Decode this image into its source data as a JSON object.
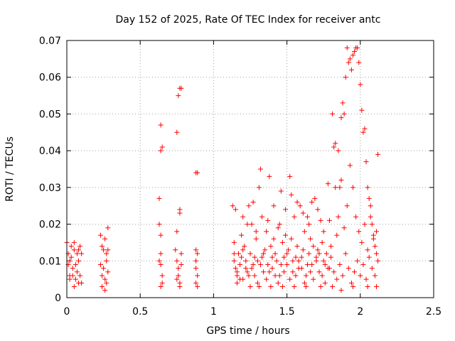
{
  "chart_data": {
    "type": "scatter",
    "title": "Day 152 of 2025, Rate Of TEC Index for receiver antc",
    "xlabel": "GPS time / hours",
    "ylabel": "ROTI / TECUs",
    "xlim": [
      0,
      2.5
    ],
    "ylim": [
      0,
      0.07
    ],
    "xticks": [
      "0",
      "0.5",
      "1",
      "1.5",
      "2",
      "2.5"
    ],
    "yticks": [
      "0",
      "0.01",
      "0.02",
      "0.03",
      "0.04",
      "0.05",
      "0.06",
      "0.07"
    ],
    "grid": true,
    "marker": "plus",
    "color": "#ff0000",
    "series": [
      {
        "points": [
          [
            0.0,
            0.015
          ],
          [
            0.01,
            0.012
          ],
          [
            0.01,
            0.009
          ],
          [
            0.02,
            0.006
          ],
          [
            0.02,
            0.005
          ],
          [
            0.03,
            0.014
          ],
          [
            0.03,
            0.011
          ],
          [
            0.04,
            0.008
          ],
          [
            0.04,
            0.006
          ],
          [
            0.05,
            0.015
          ],
          [
            0.05,
            0.013
          ],
          [
            0.06,
            0.009
          ],
          [
            0.06,
            0.005
          ],
          [
            0.07,
            0.012
          ],
          [
            0.07,
            0.007
          ],
          [
            0.08,
            0.004
          ],
          [
            0.08,
            0.01
          ],
          [
            0.09,
            0.014
          ],
          [
            0.09,
            0.006
          ],
          [
            0.1,
            0.012
          ],
          [
            0.1,
            0.004
          ],
          [
            0.02,
            0.01
          ],
          [
            0.05,
            0.003
          ],
          [
            0.08,
            0.013
          ],
          [
            0.23,
            0.017
          ],
          [
            0.23,
            0.009
          ],
          [
            0.24,
            0.006
          ],
          [
            0.24,
            0.003
          ],
          [
            0.25,
            0.013
          ],
          [
            0.25,
            0.008
          ],
          [
            0.26,
            0.005
          ],
          [
            0.26,
            0.016
          ],
          [
            0.27,
            0.01
          ],
          [
            0.27,
            0.004
          ],
          [
            0.28,
            0.019
          ],
          [
            0.28,
            0.013
          ],
          [
            0.28,
            0.007
          ],
          [
            0.24,
            0.014
          ],
          [
            0.26,
            0.002
          ],
          [
            0.27,
            0.012
          ],
          [
            0.63,
            0.027
          ],
          [
            0.63,
            0.02
          ],
          [
            0.64,
            0.047
          ],
          [
            0.64,
            0.04
          ],
          [
            0.64,
            0.017
          ],
          [
            0.64,
            0.012
          ],
          [
            0.64,
            0.009
          ],
          [
            0.65,
            0.041
          ],
          [
            0.65,
            0.006
          ],
          [
            0.65,
            0.004
          ],
          [
            0.64,
            0.003
          ],
          [
            0.63,
            0.01
          ],
          [
            0.75,
            0.045
          ],
          [
            0.76,
            0.055
          ],
          [
            0.77,
            0.057
          ],
          [
            0.78,
            0.057
          ],
          [
            0.77,
            0.024
          ],
          [
            0.77,
            0.023
          ],
          [
            0.75,
            0.018
          ],
          [
            0.74,
            0.013
          ],
          [
            0.75,
            0.01
          ],
          [
            0.76,
            0.008
          ],
          [
            0.76,
            0.006
          ],
          [
            0.77,
            0.004
          ],
          [
            0.77,
            0.003
          ],
          [
            0.78,
            0.012
          ],
          [
            0.78,
            0.009
          ],
          [
            0.75,
            0.005
          ],
          [
            0.88,
            0.034
          ],
          [
            0.89,
            0.034
          ],
          [
            0.88,
            0.013
          ],
          [
            0.89,
            0.012
          ],
          [
            0.88,
            0.01
          ],
          [
            0.88,
            0.008
          ],
          [
            0.89,
            0.006
          ],
          [
            0.88,
            0.004
          ],
          [
            0.89,
            0.003
          ],
          [
            1.13,
            0.025
          ],
          [
            1.14,
            0.015
          ],
          [
            1.14,
            0.01
          ],
          [
            1.15,
            0.008
          ],
          [
            1.15,
            0.024
          ],
          [
            1.16,
            0.006
          ],
          [
            1.16,
            0.004
          ],
          [
            1.17,
            0.012
          ],
          [
            1.18,
            0.009
          ],
          [
            1.19,
            0.011
          ],
          [
            1.2,
            0.005
          ],
          [
            1.2,
            0.022
          ],
          [
            1.21,
            0.014
          ],
          [
            1.22,
            0.008
          ],
          [
            1.23,
            0.007
          ],
          [
            1.24,
            0.025
          ],
          [
            1.25,
            0.012
          ],
          [
            1.26,
            0.02
          ],
          [
            1.27,
            0.009
          ],
          [
            1.28,
            0.006
          ],
          [
            1.29,
            0.016
          ],
          [
            1.3,
            0.01
          ],
          [
            1.31,
            0.03
          ],
          [
            1.32,
            0.035
          ],
          [
            1.33,
            0.011
          ],
          [
            1.34,
            0.007
          ],
          [
            1.35,
            0.013
          ],
          [
            1.36,
            0.018
          ],
          [
            1.37,
            0.009
          ],
          [
            1.38,
            0.033
          ],
          [
            1.39,
            0.014
          ],
          [
            1.4,
            0.008
          ],
          [
            1.41,
            0.025
          ],
          [
            1.42,
            0.012
          ],
          [
            1.43,
            0.01
          ],
          [
            1.44,
            0.019
          ],
          [
            1.45,
            0.006
          ],
          [
            1.46,
            0.029
          ],
          [
            1.47,
            0.015
          ],
          [
            1.48,
            0.011
          ],
          [
            1.49,
            0.024
          ],
          [
            1.5,
            0.009
          ],
          [
            1.51,
            0.013
          ],
          [
            1.52,
            0.033
          ],
          [
            1.53,
            0.016
          ],
          [
            1.54,
            0.007
          ],
          [
            1.55,
            0.022
          ],
          [
            1.56,
            0.011
          ],
          [
            1.57,
            0.014
          ],
          [
            1.58,
            0.01
          ],
          [
            1.59,
            0.025
          ],
          [
            1.6,
            0.008
          ],
          [
            1.61,
            0.013
          ],
          [
            1.62,
            0.018
          ],
          [
            1.63,
            0.006
          ],
          [
            1.64,
            0.022
          ],
          [
            1.65,
            0.012
          ],
          [
            1.66,
            0.016
          ],
          [
            1.67,
            0.009
          ],
          [
            1.68,
            0.014
          ],
          [
            1.69,
            0.027
          ],
          [
            1.7,
            0.011
          ],
          [
            1.71,
            0.013
          ],
          [
            1.72,
            0.007
          ],
          [
            1.73,
            0.021
          ],
          [
            1.74,
            0.015
          ],
          [
            1.75,
            0.01
          ],
          [
            1.76,
            0.009
          ],
          [
            1.77,
            0.012
          ],
          [
            1.78,
            0.031
          ],
          [
            1.79,
            0.008
          ],
          [
            1.8,
            0.014
          ],
          [
            1.81,
            0.05
          ],
          [
            1.82,
            0.041
          ],
          [
            1.83,
            0.042
          ],
          [
            1.84,
            0.017
          ],
          [
            1.85,
            0.04
          ],
          [
            1.86,
            0.03
          ],
          [
            1.87,
            0.049
          ],
          [
            1.88,
            0.053
          ],
          [
            1.89,
            0.05
          ],
          [
            1.9,
            0.06
          ],
          [
            1.91,
            0.068
          ],
          [
            1.92,
            0.064
          ],
          [
            1.93,
            0.065
          ],
          [
            1.94,
            0.062
          ],
          [
            1.95,
            0.066
          ],
          [
            1.96,
            0.067
          ],
          [
            1.97,
            0.068
          ],
          [
            1.98,
            0.068
          ],
          [
            1.99,
            0.064
          ],
          [
            2.0,
            0.058
          ],
          [
            2.01,
            0.051
          ],
          [
            2.02,
            0.045
          ],
          [
            2.03,
            0.046
          ],
          [
            2.04,
            0.037
          ],
          [
            2.05,
            0.03
          ],
          [
            2.06,
            0.027
          ],
          [
            2.07,
            0.025
          ],
          [
            2.08,
            0.02
          ],
          [
            2.09,
            0.017
          ],
          [
            2.1,
            0.014
          ],
          [
            2.11,
            0.012
          ],
          [
            2.12,
            0.039
          ],
          [
            1.14,
            0.012
          ],
          [
            1.16,
            0.007
          ],
          [
            1.18,
            0.005
          ],
          [
            1.2,
            0.013
          ],
          [
            1.22,
            0.01
          ],
          [
            1.24,
            0.006
          ],
          [
            1.26,
            0.008
          ],
          [
            1.28,
            0.011
          ],
          [
            1.3,
            0.004
          ],
          [
            1.32,
            0.009
          ],
          [
            1.34,
            0.012
          ],
          [
            1.36,
            0.005
          ],
          [
            1.38,
            0.007
          ],
          [
            1.4,
            0.011
          ],
          [
            1.42,
            0.006
          ],
          [
            1.44,
            0.004
          ],
          [
            1.46,
            0.009
          ],
          [
            1.48,
            0.007
          ],
          [
            1.5,
            0.012
          ],
          [
            1.52,
            0.005
          ],
          [
            1.54,
            0.01
          ],
          [
            1.56,
            0.006
          ],
          [
            1.58,
            0.008
          ],
          [
            1.6,
            0.011
          ],
          [
            1.62,
            0.004
          ],
          [
            1.64,
            0.009
          ],
          [
            1.66,
            0.007
          ],
          [
            1.68,
            0.005
          ],
          [
            1.7,
            0.01
          ],
          [
            1.72,
            0.012
          ],
          [
            1.74,
            0.006
          ],
          [
            1.76,
            0.004
          ],
          [
            1.78,
            0.008
          ],
          [
            1.8,
            0.011
          ],
          [
            1.82,
            0.007
          ],
          [
            1.84,
            0.005
          ],
          [
            1.86,
            0.009
          ],
          [
            1.88,
            0.006
          ],
          [
            1.9,
            0.012
          ],
          [
            1.92,
            0.008
          ],
          [
            1.94,
            0.004
          ],
          [
            1.96,
            0.007
          ],
          [
            1.98,
            0.01
          ],
          [
            2.0,
            0.006
          ],
          [
            2.02,
            0.009
          ],
          [
            2.04,
            0.005
          ],
          [
            2.06,
            0.011
          ],
          [
            2.08,
            0.008
          ],
          [
            2.1,
            0.006
          ],
          [
            2.12,
            0.01
          ],
          [
            1.19,
            0.017
          ],
          [
            1.23,
            0.02
          ],
          [
            1.27,
            0.026
          ],
          [
            1.29,
            0.018
          ],
          [
            1.33,
            0.022
          ],
          [
            1.37,
            0.021
          ],
          [
            1.41,
            0.016
          ],
          [
            1.45,
            0.02
          ],
          [
            1.49,
            0.017
          ],
          [
            1.53,
            0.028
          ],
          [
            1.57,
            0.026
          ],
          [
            1.61,
            0.023
          ],
          [
            1.65,
            0.02
          ],
          [
            1.67,
            0.026
          ],
          [
            1.71,
            0.024
          ],
          [
            1.75,
            0.018
          ],
          [
            1.79,
            0.021
          ],
          [
            1.83,
            0.03
          ],
          [
            1.85,
            0.022
          ],
          [
            1.87,
            0.032
          ],
          [
            1.89,
            0.019
          ],
          [
            1.91,
            0.025
          ],
          [
            1.93,
            0.036
          ],
          [
            1.95,
            0.03
          ],
          [
            1.97,
            0.022
          ],
          [
            1.99,
            0.018
          ],
          [
            2.01,
            0.015
          ],
          [
            2.03,
            0.02
          ],
          [
            2.05,
            0.013
          ],
          [
            2.07,
            0.022
          ],
          [
            2.09,
            0.016
          ],
          [
            2.11,
            0.018
          ],
          [
            1.25,
            0.003
          ],
          [
            1.31,
            0.003
          ],
          [
            1.39,
            0.003
          ],
          [
            1.47,
            0.003
          ],
          [
            1.55,
            0.003
          ],
          [
            1.63,
            0.003
          ],
          [
            1.73,
            0.003
          ],
          [
            1.81,
            0.003
          ],
          [
            1.87,
            0.002
          ],
          [
            1.95,
            0.003
          ],
          [
            2.05,
            0.003
          ],
          [
            2.11,
            0.003
          ]
        ]
      }
    ]
  }
}
